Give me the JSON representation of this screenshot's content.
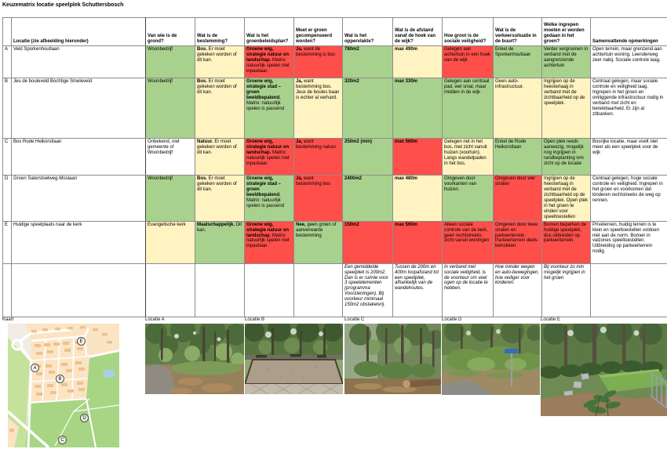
{
  "title": "Keuzematrix locatie speelplek Schuttersbosch",
  "palette": {
    "green": "#A9D18E",
    "yellow": "#FFF3C2",
    "red": "#FF4F4A",
    "white": "#FFFFFF"
  },
  "matrix": {
    "columns": [
      "",
      "Locatie (zie afbeelding hieronder)",
      "Van wie is de grond?",
      "Wat is de bestemming?",
      "Wat is het groenbeleidsplan?",
      "Moet er groen gecompenseerd worden?",
      "Wat is het oppervlakte?",
      "Wat is de afstand vanaf de hoek van de wijk?",
      "Hoe groot is de sociale veiligheid?",
      "Wat is de verkeerssituatie in de buurt?",
      "Welke ingrepen moeten er worden gedaan in het groen?",
      "Samenvattende opmerkingen"
    ],
    "rows": [
      {
        "letter": "A",
        "location": "Veld Sporkenhoutlaan",
        "italic": false,
        "cells": [
          {
            "b": "",
            "t": "Woonbedrijf",
            "tone": "green"
          },
          {
            "b": "Bos.",
            "t": " Er moet gekeken worden of dit kan.",
            "tone": "yellow"
          },
          {
            "b": "Groene wig, strategie natuur en landschap.",
            "t": " Matrix: natuurlijk spelen niet inpasbaar.",
            "tone": "red"
          },
          {
            "b": "Ja,",
            "t": " want de bestemming is bos",
            "tone": "red"
          },
          {
            "b": "780m2",
            "t": "",
            "tone": "green"
          },
          {
            "b": "max 490m",
            "t": "",
            "tone": "yellow"
          },
          {
            "b": "",
            "t": "Gelegen aan achtertuin in een hoek van de wijk",
            "tone": "red"
          },
          {
            "b": "",
            "t": "Enkel de Sporkenhoutlaan",
            "tone": "green"
          },
          {
            "b": "",
            "t": "Verder vergroenen in verband met de aangrenzende achtertuin",
            "tone": "green"
          },
          {
            "b": "",
            "t": "Open terrein, maar grenzend aan achtertuin woning. Leenderweg zeer nabij. Sociale controle laag.",
            "tone": "white"
          }
        ]
      },
      {
        "letter": "B",
        "location": "Jeu de bouleveld Bochtige Smeleveld",
        "italic": false,
        "cells": [
          {
            "b": "",
            "t": "Woonbedrijf",
            "tone": "green"
          },
          {
            "b": "Bos.",
            "t": " Er moet gekeken worden of dit kan.",
            "tone": "yellow"
          },
          {
            "b": "Groene wig, strategie stad – groen beeldbepalend.",
            "t": " Matrix: natuurlijk spelen is passend",
            "tone": "green"
          },
          {
            "b": "Ja,",
            "t": " want bestemming bos. Jeux de boules baan is echter al verhard.",
            "tone": "yellow"
          },
          {
            "b": "320m2",
            "t": "",
            "tone": "green"
          },
          {
            "b": "max 330m",
            "t": "",
            "tone": "green"
          },
          {
            "b": "",
            "t": "Gelegen aan centraal pad, wel smal, maar midden in de wijk",
            "tone": "green"
          },
          {
            "b": "",
            "t": "Geen auto-infrastructuur.",
            "tone": "yellow"
          },
          {
            "b": "",
            "t": "Ingrijpen op de heesterlaag in verband met de zichtbaarheid op de speelplek.",
            "tone": "yellow"
          },
          {
            "b": "",
            "t": "Centraal gelegen, maar sociale controle en veiligheid laag. Ingrepen in het groen en omliggende infrastructuur nodig in verband met zicht en bereikbaarheid. Er zijn al zitbanken.",
            "tone": "white"
          }
        ]
      },
      {
        "letter": "C",
        "location": "Bos Rode Heikorstlaan",
        "italic": false,
        "cells": [
          {
            "b": "",
            "t": "Onbekend, niet gemeente of Woonbedrijf",
            "tone": "white"
          },
          {
            "b": "Natuur.",
            "t": " Er moet gekeken worden of dit kan.",
            "tone": "yellow"
          },
          {
            "b": "Groene wig, strategie natuur en landschap.",
            "t": " Matrix: natuurlijk spelen niet inpasbaar.",
            "tone": "red"
          },
          {
            "b": "Ja,",
            "t": " want bestemming natuur",
            "tone": "red"
          },
          {
            "b": "250m2 (min)",
            "t": "",
            "tone": "green"
          },
          {
            "b": "max 560m",
            "t": "",
            "tone": "red"
          },
          {
            "b": "",
            "t": "Gelegen net in het bos, met zicht vanuit huizen (voortuin). Langs wandelpaden in het bos.",
            "tone": "yellow"
          },
          {
            "b": "",
            "t": "Enkel de Rode Heikorstlaan",
            "tone": "green"
          },
          {
            "b": "",
            "t": "Open plek reeds aanwezig, mogelijk nog ingrijpen in randbeplanting ivm zicht op de locatie",
            "tone": "green"
          },
          {
            "b": "",
            "t": "Bosrijke locatie, maar voelt niet meer als een speelplek voor de wijk",
            "tone": "white"
          }
        ]
      },
      {
        "letter": "D",
        "location": "Groen Saterstoelweg-Moslaan",
        "italic": false,
        "cells": [
          {
            "b": "",
            "t": "Woonbedrijf",
            "tone": "green"
          },
          {
            "b": "Bos.",
            "t": " Er moet gekeken worden of dit kan.",
            "tone": "yellow"
          },
          {
            "b": "Groene wig, strategie stad – groen beeldbepalend.",
            "t": " Matrix: natuurlijk spelen is passend",
            "tone": "green"
          },
          {
            "b": "Ja,",
            "t": " want bestemming bos",
            "tone": "red"
          },
          {
            "b": "2400m2",
            "t": "",
            "tone": "green"
          },
          {
            "b": "max 480m",
            "t": "",
            "tone": "yellow"
          },
          {
            "b": "",
            "t": "Omgeven door voorkanten van huizen.",
            "tone": "green"
          },
          {
            "b": "",
            "t": "Omgeven door vier straten",
            "tone": "red"
          },
          {
            "b": "",
            "t": "Ingrijpen op de heesterlaag in verband met de zichtbaarheid op de speelplek. Open plek in het groen te vinden voor speeltoestellen",
            "tone": "yellow"
          },
          {
            "b": "",
            "t": "Centraal gelegen, hoge sociale controle en veiligheid. Ingrepen in het groen en voorkomen dat kinderen rechtstreeks de weg op rennen.",
            "tone": "white"
          }
        ]
      },
      {
        "letter": "E",
        "location": "Huidige speelplaats naar de kerk",
        "italic": false,
        "cells": [
          {
            "b": "",
            "t": "Evangelische kerk",
            "tone": "yellow"
          },
          {
            "b": "Maatschappelijk.",
            "t": " Dit kan.",
            "tone": "green"
          },
          {
            "b": "Groene wig, strategie natuur en landschap.",
            "t": " Matrix: natuurlijk spelen niet inpasbaar.",
            "tone": "red"
          },
          {
            "b": "Nee,",
            "t": " geen groen of aanverwante bestemming",
            "tone": "green"
          },
          {
            "b": "150m2",
            "t": "",
            "tone": "red"
          },
          {
            "b": "max 560m",
            "t": "",
            "tone": "red"
          },
          {
            "b": "",
            "t": "Alleen sociale controle van de kerk, geen rechtstreeks zicht vanuit woningen",
            "tone": "red"
          },
          {
            "b": "",
            "t": "Omgeven door twee straten en parkeerterrein. Parkeerterrein deels betrokken.",
            "tone": "red"
          },
          {
            "b": "",
            "t": "Bomen beperken de huidige speelplek, dus uitbreiden op parkeerterrein.",
            "tone": "red"
          },
          {
            "b": "",
            "t": "Privéterrein, huidig terrein is te klein en speeltoestellen voldoen niet aan de norm. Bomen in valzones speeltoestellen. Uitbreiding op parkeerterrein nodig.",
            "tone": "white"
          }
        ]
      },
      {
        "letter": "",
        "location": "",
        "italic": true,
        "cells": [
          {
            "b": "",
            "t": "",
            "tone": "white"
          },
          {
            "b": "",
            "t": "",
            "tone": "white"
          },
          {
            "b": "",
            "t": "",
            "tone": "white"
          },
          {
            "b": "",
            "t": "",
            "tone": "white"
          },
          {
            "b": "",
            "t": "Een gemiddelde speelplek is 200m2. Dan is er ruimte voor 3 speelelementen (programma Voorzieningen). Bij voorkeur minimaal 150m2 obstakelvrij.",
            "tone": "white"
          },
          {
            "b": "",
            "t": "Tussen de 200m en 400m loopafstand tot een speelplek, afhankelijk van de wandelroutes.",
            "tone": "white"
          },
          {
            "b": "",
            "t": "In verband met sociale veiligheid, is de voorkeur om veel ogen op de locatie te hebben.",
            "tone": "white"
          },
          {
            "b": "",
            "t": "Hoe minder wegen en auto-bewegingen, hoe veiliger voor kinderen.",
            "tone": "white"
          },
          {
            "b": "",
            "t": "Bij voorkeur zo min mogelijk ingrijpen in het groen",
            "tone": "white"
          },
          {
            "b": "",
            "t": "",
            "tone": "white"
          }
        ]
      }
    ]
  },
  "figures": {
    "map": {
      "label": "Kaart",
      "markers": [
        {
          "label": "E"
        },
        {
          "label": "A"
        },
        {
          "label": "B"
        },
        {
          "label": "D"
        },
        {
          "label": "C"
        }
      ]
    },
    "photos": [
      {
        "label": "Locatie A",
        "description": "Bospad met bladeren en groen"
      },
      {
        "label": "Locatie B",
        "description": "Jeu de boules baan tussen de bomen"
      },
      {
        "label": "Locatie C",
        "description": "Bosrijke plek met struiken en boomstam"
      },
      {
        "label": "Locatie D",
        "description": "Groenstrook met struiken langs pad"
      },
      {
        "label": "Locatie E",
        "description": "Huidige speelplek met groen veld en hek"
      }
    ]
  }
}
